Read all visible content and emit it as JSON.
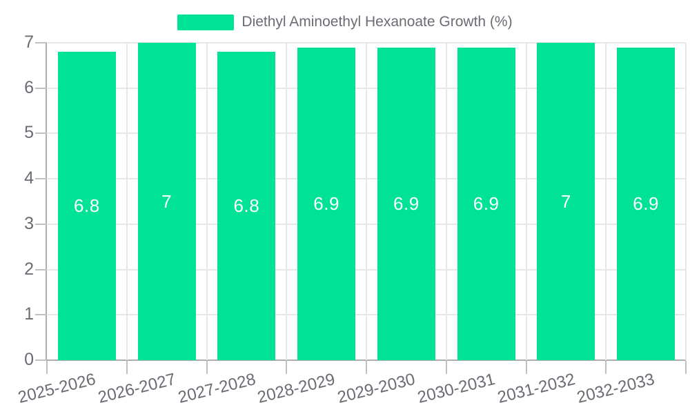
{
  "legend": {
    "label": "Diethyl Aminoethyl Hexanoate Growth (%)"
  },
  "chart_data": {
    "type": "bar",
    "title": "Diethyl Aminoethyl Hexanoate Growth (%)",
    "categories": [
      "2025-2026",
      "2026-2027",
      "2027-2028",
      "2028-2029",
      "2029-2030",
      "2030-2031",
      "2031-2032",
      "2032-2033"
    ],
    "values": [
      6.8,
      7,
      6.8,
      6.9,
      6.9,
      6.9,
      7,
      6.9
    ],
    "value_labels": [
      "6.8",
      "7",
      "6.8",
      "6.9",
      "6.9",
      "6.9",
      "7",
      "6.9"
    ],
    "xlabel": "",
    "ylabel": "",
    "ylim": [
      0,
      7
    ],
    "yticks": [
      0,
      1,
      2,
      3,
      4,
      5,
      6,
      7
    ],
    "grid": true,
    "legend_position": "top",
    "bar_color": "#00E396",
    "value_label_color": "#ffffff",
    "axis_label_color": "#6b6b73"
  }
}
